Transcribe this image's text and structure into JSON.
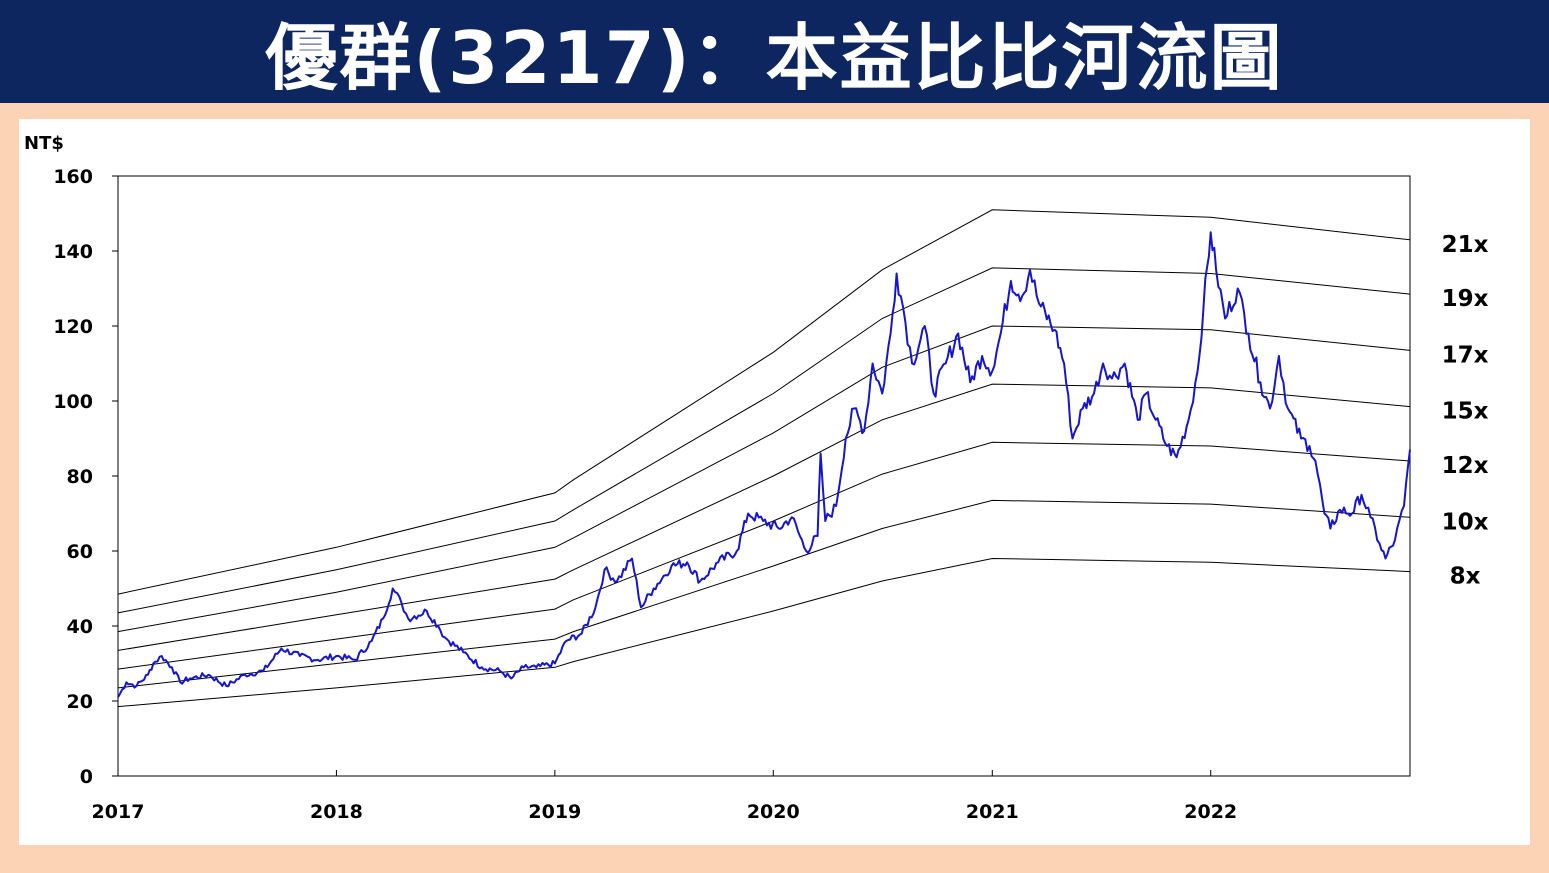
{
  "title": "優群(3217)：本益比比河流圖",
  "chart_data": {
    "type": "line",
    "ylabel": "NT$",
    "ylim": [
      0,
      160
    ],
    "yticks": [
      0,
      20,
      40,
      60,
      80,
      100,
      120,
      140,
      160
    ],
    "xlim": [
      "2017-01-01",
      "2022-11-30"
    ],
    "xticks": [
      "2017",
      "2018",
      "2019",
      "2020",
      "2021",
      "2022"
    ],
    "grid": false,
    "colors": {
      "price": "#1515cc",
      "band": "#000000",
      "title_bg": "#0d2660",
      "page_bg": "#fcd3b4"
    },
    "bands": [
      {
        "label": "21x",
        "points": [
          [
            "2017-01-01",
            48.5
          ],
          [
            "2018-01-01",
            61
          ],
          [
            "2019-01-01",
            75.5
          ],
          [
            "2019-02-01",
            79
          ],
          [
            "2020-01-01",
            113
          ],
          [
            "2020-07-01",
            135
          ],
          [
            "2021-01-01",
            151
          ],
          [
            "2022-01-01",
            149
          ],
          [
            "2022-11-30",
            143
          ]
        ]
      },
      {
        "label": "19x",
        "points": [
          [
            "2017-01-01",
            43.5
          ],
          [
            "2018-01-01",
            55
          ],
          [
            "2019-01-01",
            68
          ],
          [
            "2019-02-01",
            71
          ],
          [
            "2020-01-01",
            102
          ],
          [
            "2020-07-01",
            122
          ],
          [
            "2021-01-01",
            135.5
          ],
          [
            "2022-01-01",
            134
          ],
          [
            "2022-11-30",
            128.5
          ]
        ]
      },
      {
        "label": "17x",
        "points": [
          [
            "2017-01-01",
            38.5
          ],
          [
            "2018-01-01",
            49
          ],
          [
            "2019-01-01",
            61
          ],
          [
            "2019-02-01",
            63.5
          ],
          [
            "2020-01-01",
            91.5
          ],
          [
            "2020-07-01",
            109
          ],
          [
            "2021-01-01",
            120
          ],
          [
            "2022-01-01",
            119
          ],
          [
            "2022-11-30",
            113.5
          ]
        ]
      },
      {
        "label": "15x",
        "points": [
          [
            "2017-01-01",
            33.5
          ],
          [
            "2018-01-01",
            43
          ],
          [
            "2019-01-01",
            52.5
          ],
          [
            "2019-02-01",
            55
          ],
          [
            "2020-01-01",
            80
          ],
          [
            "2020-07-01",
            95
          ],
          [
            "2021-01-01",
            104.5
          ],
          [
            "2022-01-01",
            103.5
          ],
          [
            "2022-11-30",
            98.5
          ]
        ]
      },
      {
        "label": "12x",
        "points": [
          [
            "2017-01-01",
            28.5
          ],
          [
            "2018-01-01",
            36.5
          ],
          [
            "2019-01-01",
            44.5
          ],
          [
            "2019-02-01",
            47
          ],
          [
            "2020-01-01",
            68
          ],
          [
            "2020-07-01",
            80.5
          ],
          [
            "2021-01-01",
            89
          ],
          [
            "2022-01-01",
            88
          ],
          [
            "2022-11-30",
            84
          ]
        ]
      },
      {
        "label": "10x",
        "points": [
          [
            "2017-01-01",
            23.5
          ],
          [
            "2018-01-01",
            30
          ],
          [
            "2019-01-01",
            36.5
          ],
          [
            "2019-02-01",
            38.5
          ],
          [
            "2020-01-01",
            56
          ],
          [
            "2020-07-01",
            66
          ],
          [
            "2021-01-01",
            73.5
          ],
          [
            "2022-01-01",
            72.5
          ],
          [
            "2022-11-30",
            69
          ]
        ]
      },
      {
        "label": "8x",
        "points": [
          [
            "2017-01-01",
            18.5
          ],
          [
            "2018-01-01",
            23.5
          ],
          [
            "2019-01-01",
            29
          ],
          [
            "2019-02-01",
            30.5
          ],
          [
            "2020-01-01",
            44
          ],
          [
            "2020-07-01",
            52
          ],
          [
            "2021-01-01",
            58
          ],
          [
            "2022-01-01",
            57
          ],
          [
            "2022-11-30",
            54.5
          ]
        ]
      }
    ],
    "series": [
      {
        "points": [
          [
            "2017-01-01",
            21
          ],
          [
            "2017-01-15",
            25
          ],
          [
            "2017-02-01",
            24
          ],
          [
            "2017-02-20",
            27
          ],
          [
            "2017-03-01",
            30
          ],
          [
            "2017-03-15",
            32
          ],
          [
            "2017-04-01",
            29
          ],
          [
            "2017-04-15",
            25
          ],
          [
            "2017-05-01",
            26
          ],
          [
            "2017-06-01",
            27
          ],
          [
            "2017-07-01",
            24
          ],
          [
            "2017-08-01",
            27
          ],
          [
            "2017-09-01",
            28
          ],
          [
            "2017-10-01",
            34
          ],
          [
            "2017-11-01",
            32
          ],
          [
            "2017-12-01",
            31
          ],
          [
            "2018-01-01",
            32
          ],
          [
            "2018-02-01",
            31
          ],
          [
            "2018-03-01",
            36
          ],
          [
            "2018-03-20",
            42
          ],
          [
            "2018-04-05",
            50
          ],
          [
            "2018-04-20",
            46
          ],
          [
            "2018-05-01",
            42
          ],
          [
            "2018-06-01",
            44
          ],
          [
            "2018-06-20",
            40
          ],
          [
            "2018-07-01",
            37
          ],
          [
            "2018-08-01",
            33
          ],
          [
            "2018-09-01",
            29
          ],
          [
            "2018-10-01",
            28
          ],
          [
            "2018-10-20",
            26
          ],
          [
            "2018-11-10",
            29
          ],
          [
            "2018-12-01",
            29
          ],
          [
            "2019-01-01",
            30
          ],
          [
            "2019-01-20",
            36
          ],
          [
            "2019-02-15",
            38
          ],
          [
            "2019-03-10",
            45
          ],
          [
            "2019-03-25",
            55
          ],
          [
            "2019-04-15",
            52
          ],
          [
            "2019-05-10",
            58
          ],
          [
            "2019-05-25",
            45
          ],
          [
            "2019-06-15",
            50
          ],
          [
            "2019-07-15",
            56
          ],
          [
            "2019-08-10",
            57
          ],
          [
            "2019-09-01",
            52
          ],
          [
            "2019-10-01",
            57
          ],
          [
            "2019-11-01",
            60
          ],
          [
            "2019-11-20",
            70
          ],
          [
            "2019-12-15",
            68
          ],
          [
            "2020-01-10",
            66
          ],
          [
            "2020-02-01",
            69
          ],
          [
            "2020-02-25",
            60
          ],
          [
            "2020-03-15",
            64
          ],
          [
            "2020-03-20",
            86
          ],
          [
            "2020-03-28",
            68
          ],
          [
            "2020-04-15",
            72
          ],
          [
            "2020-05-01",
            90
          ],
          [
            "2020-05-15",
            98
          ],
          [
            "2020-06-01",
            92
          ],
          [
            "2020-06-15",
            110
          ],
          [
            "2020-07-01",
            102
          ],
          [
            "2020-07-15",
            118
          ],
          [
            "2020-07-25",
            134
          ],
          [
            "2020-08-05",
            125
          ],
          [
            "2020-08-20",
            110
          ],
          [
            "2020-09-10",
            120
          ],
          [
            "2020-09-25",
            102
          ],
          [
            "2020-10-15",
            110
          ],
          [
            "2020-11-05",
            118
          ],
          [
            "2020-11-25",
            105
          ],
          [
            "2020-12-15",
            112
          ],
          [
            "2021-01-01",
            108
          ],
          [
            "2021-01-15",
            118
          ],
          [
            "2021-02-01",
            132
          ],
          [
            "2021-02-20",
            128
          ],
          [
            "2021-03-05",
            135
          ],
          [
            "2021-03-20",
            126
          ],
          [
            "2021-04-15",
            119
          ],
          [
            "2021-05-01",
            110
          ],
          [
            "2021-05-15",
            90
          ],
          [
            "2021-06-01",
            98
          ],
          [
            "2021-06-20",
            102
          ],
          [
            "2021-07-05",
            110
          ],
          [
            "2021-07-20",
            106
          ],
          [
            "2021-08-10",
            110
          ],
          [
            "2021-09-01",
            95
          ],
          [
            "2021-09-15",
            102
          ],
          [
            "2021-10-01",
            95
          ],
          [
            "2021-10-20",
            88
          ],
          [
            "2021-11-05",
            85
          ],
          [
            "2021-11-25",
            95
          ],
          [
            "2021-12-10",
            108
          ],
          [
            "2021-12-20",
            125
          ],
          [
            "2022-01-01",
            145
          ],
          [
            "2022-01-10",
            135
          ],
          [
            "2022-01-25",
            122
          ],
          [
            "2022-02-15",
            130
          ],
          [
            "2022-03-05",
            118
          ],
          [
            "2022-03-25",
            105
          ],
          [
            "2022-04-10",
            98
          ],
          [
            "2022-04-25",
            112
          ],
          [
            "2022-05-10",
            98
          ],
          [
            "2022-06-01",
            90
          ],
          [
            "2022-06-15",
            88
          ],
          [
            "2022-06-25",
            84
          ],
          [
            "2022-07-10",
            70
          ],
          [
            "2022-07-20",
            66
          ],
          [
            "2022-08-05",
            71
          ],
          [
            "2022-08-25",
            70
          ],
          [
            "2022-09-10",
            75
          ],
          [
            "2022-09-25",
            69
          ],
          [
            "2022-10-10",
            62
          ],
          [
            "2022-10-20",
            58
          ],
          [
            "2022-11-05",
            63
          ],
          [
            "2022-11-20",
            72
          ],
          [
            "2022-11-30",
            87
          ]
        ]
      }
    ]
  }
}
